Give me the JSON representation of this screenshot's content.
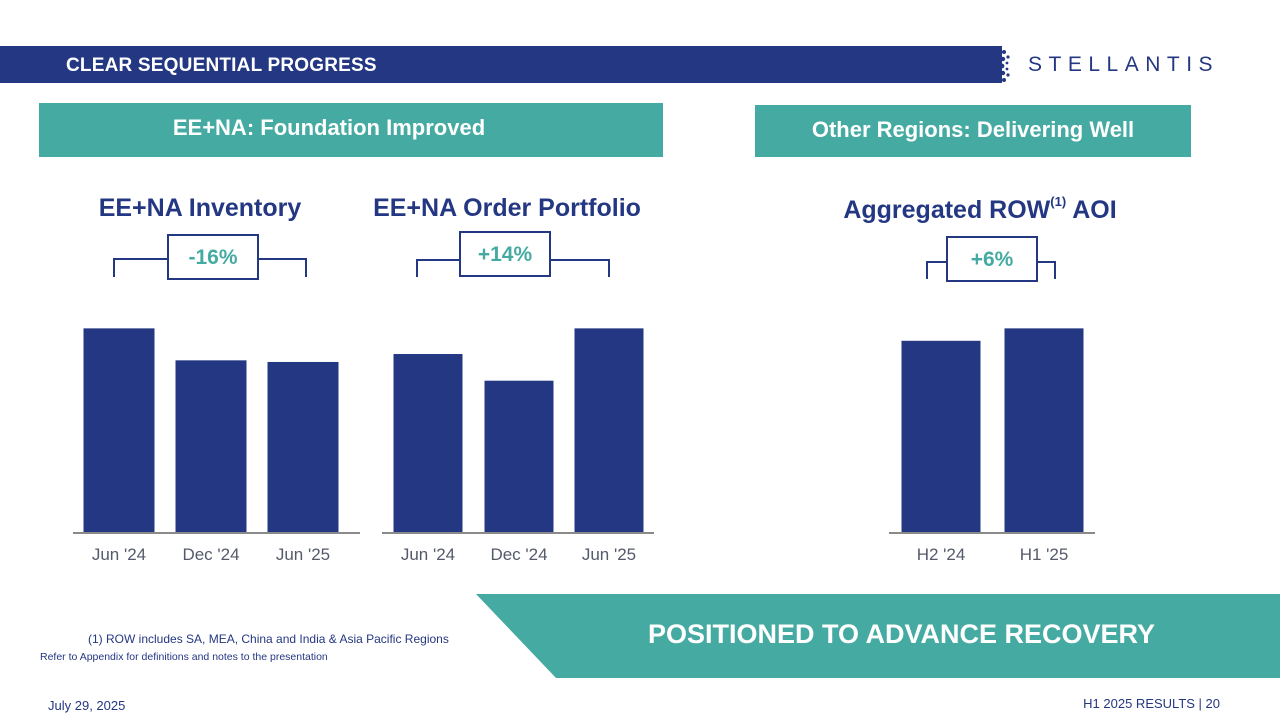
{
  "header": {
    "title": "CLEAR SEQUENTIAL PROGRESS",
    "logo_text": "STELLANTIS"
  },
  "banners": {
    "left": "EE+NA: Foundation Improved",
    "right": "Other Regions: Delivering Well"
  },
  "colors": {
    "navy": "#243782",
    "teal": "#45aba2",
    "axis": "#8a8a8a"
  },
  "chart_data": [
    {
      "type": "bar",
      "title": "EE+NA Inventory",
      "change_label": "-16%",
      "categories": [
        "Jun '24",
        "Dec '24",
        "Jun '25"
      ],
      "values": [
        100,
        84.3,
        83.5
      ],
      "ylim": [
        0,
        110
      ],
      "note": "relative bar heights; no axis values shown"
    },
    {
      "type": "bar",
      "title": "EE+NA Order Portfolio",
      "change_label": "+14%",
      "categories": [
        "Jun '24",
        "Dec '24",
        "Jun '25"
      ],
      "values": [
        87.4,
        74.3,
        100
      ],
      "ylim": [
        0,
        110
      ],
      "note": "relative bar heights; no axis values shown"
    },
    {
      "type": "bar",
      "title": "Aggregated ROW",
      "title_sup": "(1)",
      "title_suffix": "AOI",
      "change_label": "+6%",
      "categories": [
        "H2 '24",
        "H1 '25"
      ],
      "values": [
        93.9,
        100
      ],
      "ylim": [
        0,
        110
      ],
      "note": "relative bar heights; no axis values shown"
    }
  ],
  "bottom_banner": "POSITIONED TO ADVANCE RECOVERY",
  "footnotes": {
    "row": "(1) ROW includes SA, MEA, China and India & Asia Pacific Regions",
    "appendix": "Refer to Appendix for definitions and notes to the presentation"
  },
  "footer": {
    "date": "July 29, 2025",
    "page": "H1 2025 RESULTS  |  20"
  }
}
